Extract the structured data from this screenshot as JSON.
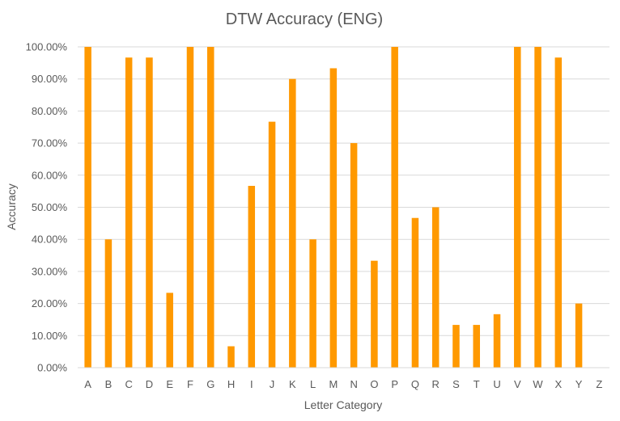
{
  "chart_data": {
    "type": "bar",
    "title": "DTW Accuracy (ENG)",
    "xlabel": "Letter Category",
    "ylabel": "Accuracy",
    "ylim": [
      0,
      1
    ],
    "y_tick_labels": [
      "0.00%",
      "10.00%",
      "20.00%",
      "30.00%",
      "40.00%",
      "50.00%",
      "60.00%",
      "70.00%",
      "80.00%",
      "90.00%",
      "100.00%"
    ],
    "y_ticks": [
      0,
      0.1,
      0.2,
      0.3,
      0.4,
      0.5,
      0.6,
      0.7,
      0.8,
      0.9,
      1.0
    ],
    "grid": true,
    "legend": "none",
    "bar_color": "#FF9900",
    "categories": [
      "A",
      "B",
      "C",
      "D",
      "E",
      "F",
      "G",
      "H",
      "I",
      "J",
      "K",
      "L",
      "M",
      "N",
      "O",
      "P",
      "Q",
      "R",
      "S",
      "T",
      "U",
      "V",
      "W",
      "X",
      "Y",
      "Z"
    ],
    "values": [
      1.0,
      0.4,
      0.9667,
      0.9667,
      0.2333,
      1.0,
      1.0,
      0.0667,
      0.5667,
      0.7667,
      0.9,
      0.4,
      0.9333,
      0.7,
      0.3333,
      1.0,
      0.4667,
      0.5,
      0.1333,
      0.1333,
      0.1667,
      1.0,
      1.0,
      0.9667,
      0.2,
      0.0
    ]
  }
}
